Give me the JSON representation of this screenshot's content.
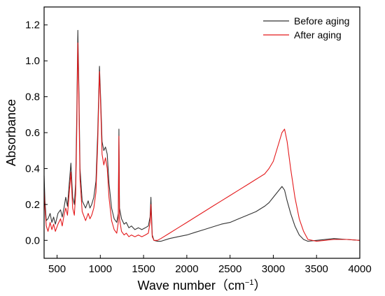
{
  "chart_data": {
    "type": "line",
    "xlabel": "Wave number（cm",
    "xlabel_sup": "−1",
    "xlabel_close": "）",
    "ylabel": "Absorbance",
    "xlim": [
      350,
      4000
    ],
    "ylim": [
      -0.1,
      1.3
    ],
    "x_ticks": [
      500,
      1000,
      1500,
      2000,
      2500,
      3000,
      3500,
      4000
    ],
    "x_tick_labels": [
      "500",
      "1000",
      "1500",
      "2000",
      "2500",
      "3000",
      "3500",
      "4000"
    ],
    "y_ticks": [
      0.0,
      0.2,
      0.4,
      0.6,
      0.8,
      1.0,
      1.2
    ],
    "y_tick_labels": [
      "0.0",
      "0.2",
      "0.4",
      "0.6",
      "0.8",
      "1.0",
      "1.2"
    ],
    "grid": false,
    "legend_position": "top-right",
    "series": [
      {
        "name": "Before aging",
        "color": "#333333",
        "points": [
          [
            350,
            0.36
          ],
          [
            360,
            0.22
          ],
          [
            375,
            0.11
          ],
          [
            395,
            0.12
          ],
          [
            420,
            0.15
          ],
          [
            440,
            0.1
          ],
          [
            460,
            0.13
          ],
          [
            480,
            0.09
          ],
          [
            510,
            0.15
          ],
          [
            540,
            0.17
          ],
          [
            560,
            0.13
          ],
          [
            580,
            0.18
          ],
          [
            600,
            0.24
          ],
          [
            620,
            0.19
          ],
          [
            640,
            0.31
          ],
          [
            660,
            0.43
          ],
          [
            680,
            0.24
          ],
          [
            700,
            0.2
          ],
          [
            715,
            0.32
          ],
          [
            728,
            0.7
          ],
          [
            740,
            1.17
          ],
          [
            752,
            0.85
          ],
          [
            765,
            0.4
          ],
          [
            790,
            0.22
          ],
          [
            830,
            0.18
          ],
          [
            860,
            0.22
          ],
          [
            880,
            0.18
          ],
          [
            900,
            0.2
          ],
          [
            925,
            0.24
          ],
          [
            950,
            0.33
          ],
          [
            970,
            0.6
          ],
          [
            990,
            0.97
          ],
          [
            1005,
            0.78
          ],
          [
            1020,
            0.55
          ],
          [
            1040,
            0.5
          ],
          [
            1060,
            0.52
          ],
          [
            1080,
            0.48
          ],
          [
            1100,
            0.32
          ],
          [
            1130,
            0.18
          ],
          [
            1160,
            0.12
          ],
          [
            1190,
            0.1
          ],
          [
            1208,
            0.15
          ],
          [
            1215,
            0.62
          ],
          [
            1222,
            0.18
          ],
          [
            1245,
            0.12
          ],
          [
            1275,
            0.09
          ],
          [
            1300,
            0.1
          ],
          [
            1330,
            0.07
          ],
          [
            1360,
            0.08
          ],
          [
            1400,
            0.06
          ],
          [
            1440,
            0.07
          ],
          [
            1480,
            0.06
          ],
          [
            1520,
            0.07
          ],
          [
            1555,
            0.08
          ],
          [
            1575,
            0.13
          ],
          [
            1585,
            0.24
          ],
          [
            1592,
            0.14
          ],
          [
            1600,
            0.03
          ],
          [
            1620,
            0.0
          ],
          [
            1660,
            -0.005
          ],
          [
            1700,
            -0.005
          ],
          [
            1800,
            0.01
          ],
          [
            1900,
            0.02
          ],
          [
            2000,
            0.03
          ],
          [
            2100,
            0.045
          ],
          [
            2200,
            0.06
          ],
          [
            2300,
            0.075
          ],
          [
            2400,
            0.09
          ],
          [
            2500,
            0.1
          ],
          [
            2600,
            0.12
          ],
          [
            2700,
            0.14
          ],
          [
            2800,
            0.16
          ],
          [
            2900,
            0.19
          ],
          [
            2950,
            0.21
          ],
          [
            3000,
            0.24
          ],
          [
            3050,
            0.27
          ],
          [
            3100,
            0.3
          ],
          [
            3130,
            0.28
          ],
          [
            3160,
            0.22
          ],
          [
            3200,
            0.15
          ],
          [
            3250,
            0.08
          ],
          [
            3300,
            0.03
          ],
          [
            3350,
            0.005
          ],
          [
            3400,
            -0.005
          ],
          [
            3500,
            0.0
          ],
          [
            3700,
            0.01
          ],
          [
            3850,
            0.005
          ],
          [
            4000,
            0.0
          ]
        ]
      },
      {
        "name": "After aging",
        "color": "#e41a1c",
        "points": [
          [
            350,
            0.28
          ],
          [
            360,
            0.18
          ],
          [
            375,
            0.08
          ],
          [
            395,
            0.05
          ],
          [
            420,
            0.1
          ],
          [
            440,
            0.06
          ],
          [
            460,
            0.09
          ],
          [
            480,
            0.05
          ],
          [
            510,
            0.09
          ],
          [
            540,
            0.12
          ],
          [
            560,
            0.08
          ],
          [
            580,
            0.14
          ],
          [
            600,
            0.18
          ],
          [
            620,
            0.14
          ],
          [
            640,
            0.26
          ],
          [
            660,
            0.38
          ],
          [
            680,
            0.18
          ],
          [
            700,
            0.14
          ],
          [
            715,
            0.26
          ],
          [
            728,
            0.62
          ],
          [
            740,
            1.1
          ],
          [
            752,
            0.78
          ],
          [
            765,
            0.34
          ],
          [
            790,
            0.16
          ],
          [
            830,
            0.11
          ],
          [
            860,
            0.15
          ],
          [
            880,
            0.12
          ],
          [
            900,
            0.14
          ],
          [
            925,
            0.18
          ],
          [
            950,
            0.27
          ],
          [
            970,
            0.54
          ],
          [
            990,
            0.94
          ],
          [
            1005,
            0.74
          ],
          [
            1020,
            0.48
          ],
          [
            1040,
            0.42
          ],
          [
            1060,
            0.46
          ],
          [
            1080,
            0.4
          ],
          [
            1100,
            0.24
          ],
          [
            1130,
            0.11
          ],
          [
            1160,
            0.06
          ],
          [
            1190,
            0.04
          ],
          [
            1208,
            0.1
          ],
          [
            1215,
            0.58
          ],
          [
            1222,
            0.12
          ],
          [
            1245,
            0.05
          ],
          [
            1275,
            0.03
          ],
          [
            1300,
            0.04
          ],
          [
            1330,
            0.02
          ],
          [
            1360,
            0.03
          ],
          [
            1400,
            0.02
          ],
          [
            1440,
            0.03
          ],
          [
            1480,
            0.02
          ],
          [
            1520,
            0.03
          ],
          [
            1555,
            0.04
          ],
          [
            1575,
            0.1
          ],
          [
            1585,
            0.2
          ],
          [
            1592,
            0.1
          ],
          [
            1600,
            0.02
          ],
          [
            1620,
            0.0
          ],
          [
            1660,
            0.0
          ],
          [
            1700,
            0.01
          ],
          [
            1800,
            0.04
          ],
          [
            1900,
            0.07
          ],
          [
            2000,
            0.1
          ],
          [
            2100,
            0.13
          ],
          [
            2200,
            0.16
          ],
          [
            2300,
            0.19
          ],
          [
            2400,
            0.22
          ],
          [
            2500,
            0.25
          ],
          [
            2600,
            0.28
          ],
          [
            2700,
            0.31
          ],
          [
            2800,
            0.34
          ],
          [
            2900,
            0.37
          ],
          [
            2950,
            0.4
          ],
          [
            3000,
            0.44
          ],
          [
            3050,
            0.52
          ],
          [
            3100,
            0.6
          ],
          [
            3130,
            0.62
          ],
          [
            3160,
            0.55
          ],
          [
            3200,
            0.4
          ],
          [
            3250,
            0.24
          ],
          [
            3300,
            0.12
          ],
          [
            3350,
            0.05
          ],
          [
            3400,
            0.005
          ],
          [
            3500,
            -0.005
          ],
          [
            3700,
            0.005
          ],
          [
            3850,
            0.005
          ],
          [
            4000,
            0.0
          ]
        ]
      }
    ]
  }
}
